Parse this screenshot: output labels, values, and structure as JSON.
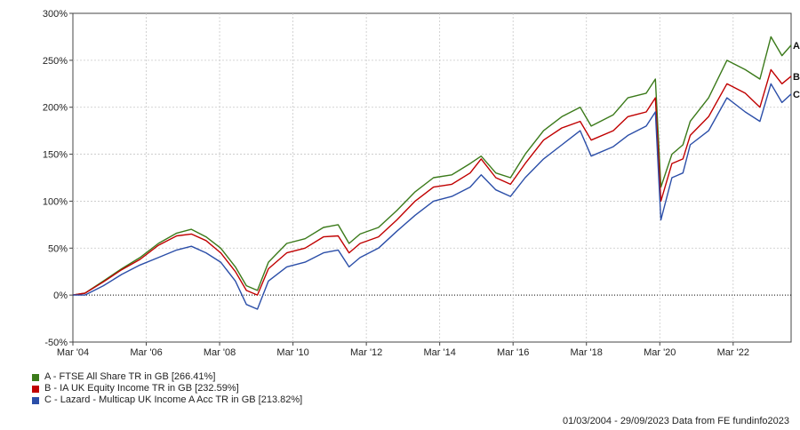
{
  "chart_data": {
    "type": "line",
    "title": "",
    "xlabel": "",
    "ylabel": "",
    "ylim": [
      -50,
      300
    ],
    "y_ticks": [
      -50,
      0,
      50,
      100,
      150,
      200,
      250,
      300
    ],
    "y_tick_labels": [
      "-50%",
      "0%",
      "50%",
      "100%",
      "150%",
      "200%",
      "250%",
      "300%"
    ],
    "x_range": [
      2004.17,
      2023.75
    ],
    "x_ticks": [
      2004.17,
      2006.17,
      2008.17,
      2010.17,
      2012.17,
      2014.17,
      2016.17,
      2018.17,
      2020.17,
      2022.17
    ],
    "x_tick_labels": [
      "Mar '04",
      "Mar '06",
      "Mar '08",
      "Mar '10",
      "Mar '12",
      "Mar '14",
      "Mar '16",
      "Mar '18",
      "Mar '20",
      "Mar '22"
    ],
    "grid": true,
    "zero_line": true,
    "legend_position": "bottom-left",
    "x": [
      2004.17,
      2004.5,
      2005.0,
      2005.5,
      2006.0,
      2006.5,
      2007.0,
      2007.4,
      2007.8,
      2008.2,
      2008.6,
      2008.9,
      2009.2,
      2009.5,
      2010.0,
      2010.5,
      2011.0,
      2011.4,
      2011.7,
      2012.0,
      2012.5,
      2013.0,
      2013.5,
      2014.0,
      2014.5,
      2015.0,
      2015.3,
      2015.7,
      2016.1,
      2016.5,
      2017.0,
      2017.5,
      2018.0,
      2018.3,
      2018.9,
      2019.3,
      2019.8,
      2020.05,
      2020.2,
      2020.5,
      2020.8,
      2021.0,
      2021.5,
      2022.0,
      2022.5,
      2022.9,
      2023.2,
      2023.5,
      2023.75
    ],
    "series": [
      {
        "name": "A - FTSE All Share TR in GB [266.41%]",
        "label": "A",
        "color": "#3b7a1a",
        "values": [
          0,
          2,
          15,
          28,
          40,
          55,
          66,
          70,
          62,
          50,
          30,
          10,
          5,
          35,
          55,
          60,
          72,
          75,
          55,
          65,
          72,
          90,
          110,
          125,
          128,
          140,
          148,
          130,
          125,
          150,
          175,
          190,
          200,
          180,
          192,
          210,
          215,
          230,
          115,
          150,
          160,
          185,
          210,
          250,
          240,
          230,
          275,
          255,
          266
        ]
      },
      {
        "name": "B - IA UK Equity Income TR in GB [232.59%]",
        "label": "B",
        "color": "#c00000",
        "values": [
          0,
          2,
          14,
          27,
          38,
          53,
          63,
          65,
          58,
          45,
          25,
          5,
          0,
          28,
          45,
          50,
          62,
          63,
          45,
          55,
          62,
          80,
          100,
          115,
          118,
          130,
          145,
          125,
          118,
          140,
          165,
          178,
          185,
          165,
          175,
          190,
          195,
          210,
          100,
          140,
          145,
          170,
          190,
          225,
          215,
          200,
          240,
          225,
          233
        ]
      },
      {
        "name": "C - Lazard - Multicap UK Income A Acc TR in GB [213.82%]",
        "label": "C",
        "color": "#2b4ea8",
        "values": [
          0,
          0,
          10,
          22,
          32,
          40,
          48,
          52,
          45,
          35,
          15,
          -10,
          -15,
          15,
          30,
          35,
          45,
          48,
          30,
          40,
          50,
          68,
          85,
          100,
          105,
          115,
          128,
          112,
          105,
          125,
          145,
          160,
          175,
          148,
          158,
          170,
          180,
          195,
          80,
          125,
          130,
          160,
          175,
          210,
          195,
          185,
          225,
          205,
          214
        ]
      }
    ]
  },
  "footer": {
    "date_range": "01/03/2004 - 29/09/2023 Data from FE fundinfo2023"
  }
}
